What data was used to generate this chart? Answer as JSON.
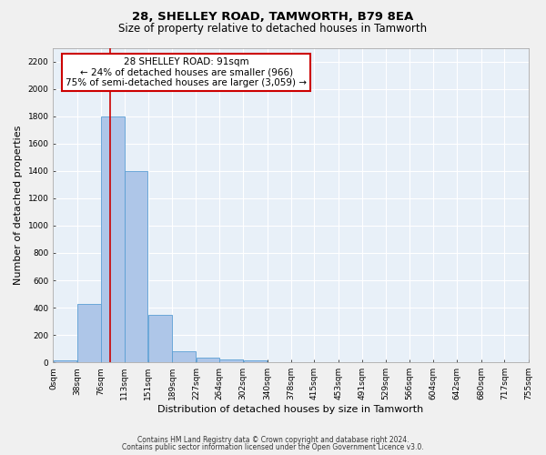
{
  "title1": "28, SHELLEY ROAD, TAMWORTH, B79 8EA",
  "title2": "Size of property relative to detached houses in Tamworth",
  "xlabel": "Distribution of detached houses by size in Tamworth",
  "ylabel": "Number of detached properties",
  "footer1": "Contains HM Land Registry data © Crown copyright and database right 2024.",
  "footer2": "Contains public sector information licensed under the Open Government Licence v3.0.",
  "bin_edges": [
    0,
    38,
    76,
    113,
    151,
    189,
    227,
    264,
    302,
    340,
    378,
    415,
    453,
    491,
    529,
    566,
    604,
    642,
    680,
    717,
    755
  ],
  "bar_values": [
    15,
    425,
    1800,
    1400,
    350,
    80,
    35,
    20,
    15,
    0,
    0,
    0,
    0,
    0,
    0,
    0,
    0,
    0,
    0,
    0
  ],
  "bar_color": "#aec6e8",
  "bar_edge_color": "#5a9fd4",
  "property_size": 91,
  "vline_color": "#cc0000",
  "annotation_line1": "28 SHELLEY ROAD: 91sqm",
  "annotation_line2": "← 24% of detached houses are smaller (966)",
  "annotation_line3": "75% of semi-detached houses are larger (3,059) →",
  "annotation_box_color": "#ffffff",
  "annotation_box_edge_color": "#cc0000",
  "bg_color": "#e8f0f8",
  "fig_bg_color": "#f0f0f0",
  "ylim": [
    0,
    2300
  ],
  "yticks": [
    0,
    200,
    400,
    600,
    800,
    1000,
    1200,
    1400,
    1600,
    1800,
    2000,
    2200
  ],
  "grid_color": "#ffffff",
  "title1_fontsize": 9.5,
  "title2_fontsize": 8.5,
  "xlabel_fontsize": 8,
  "ylabel_fontsize": 8,
  "tick_fontsize": 6.5,
  "annotation_fontsize": 7.5,
  "footer_fontsize": 5.5
}
